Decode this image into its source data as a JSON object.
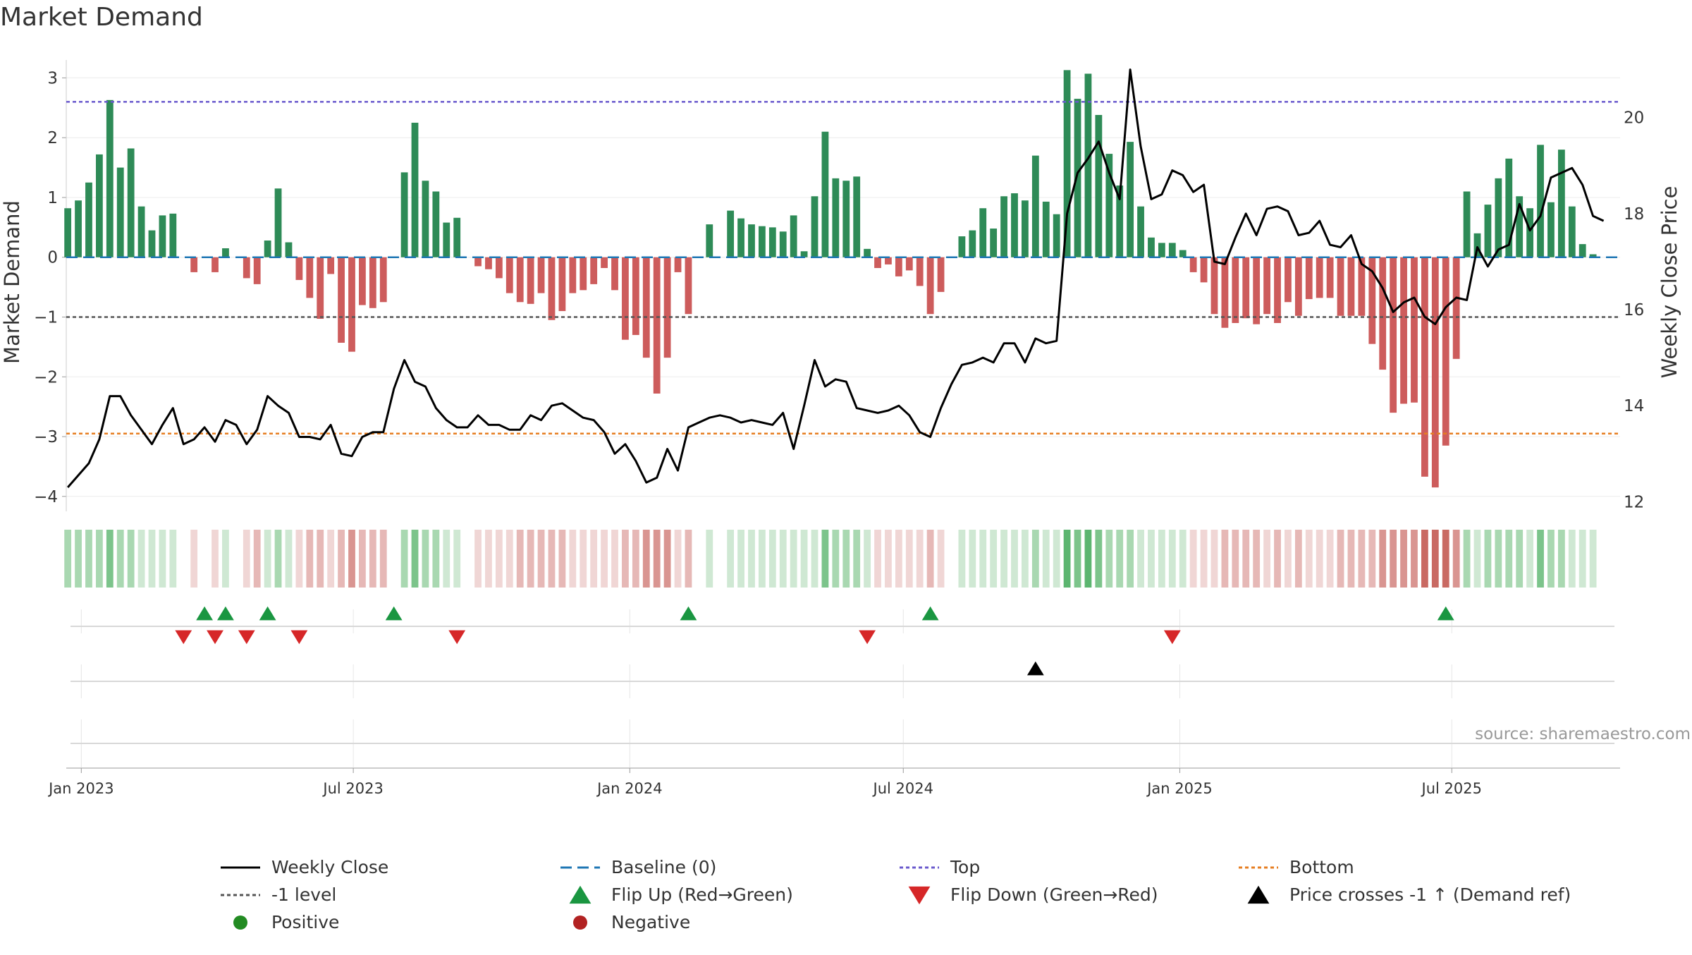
{
  "chart_data": {
    "type": "bar",
    "title": "Market Demand",
    "source": "source: sharemaestro.com",
    "ylabel": "Market Demand",
    "y2label": "Weekly Close Price",
    "ylim": [
      -4.25,
      3.3
    ],
    "y2lim": [
      11.8,
      21.2
    ],
    "yticks": [
      3,
      2,
      1,
      0,
      -1,
      -2,
      -3,
      -4
    ],
    "ytick_labels": [
      "3",
      "2",
      "1",
      "0",
      "−1",
      "−2",
      "−3",
      "−4"
    ],
    "y2ticks": [
      12,
      14,
      16,
      18,
      20
    ],
    "y2tick_labels": [
      "12",
      "14",
      "16",
      "18",
      "20"
    ],
    "x_start": "2022-12-23",
    "x_step_days": 7,
    "x_range": [
      "2022-12-22",
      "2025-10-21"
    ],
    "xticks": [
      "2023-01-01",
      "2023-07-01",
      "2024-01-01",
      "2024-07-01",
      "2025-01-01",
      "2025-07-01"
    ],
    "xtick_labels": [
      "Jan 2023",
      "Jul 2023",
      "Jan 2024",
      "Jul 2024",
      "Jan 2025",
      "Jul 2025"
    ],
    "reference_lines": {
      "top": 2.6,
      "bottom": -2.95,
      "minus_one": -1,
      "baseline": 0
    },
    "demand": [
      0.82,
      0.95,
      1.25,
      1.72,
      2.63,
      1.5,
      1.82,
      0.85,
      0.45,
      0.7,
      0.73,
      null,
      -0.25,
      null,
      -0.25,
      0.15,
      null,
      -0.35,
      -0.45,
      0.28,
      1.15,
      0.25,
      -0.38,
      -0.68,
      -1.03,
      -0.28,
      -1.43,
      -1.58,
      -0.8,
      -0.85,
      -0.75,
      null,
      1.42,
      2.25,
      1.28,
      1.1,
      0.58,
      0.66,
      null,
      -0.15,
      -0.2,
      -0.35,
      -0.6,
      -0.75,
      -0.78,
      -0.6,
      -1.05,
      -0.9,
      -0.6,
      -0.55,
      -0.45,
      -0.18,
      -0.55,
      -1.38,
      -1.3,
      -1.68,
      -2.28,
      -1.68,
      -0.25,
      -0.95,
      null,
      0.55,
      null,
      0.78,
      0.65,
      0.55,
      0.52,
      0.5,
      0.43,
      0.7,
      0.1,
      1.02,
      2.1,
      1.32,
      1.28,
      1.35,
      0.14,
      -0.18,
      -0.12,
      -0.32,
      -0.22,
      -0.48,
      -0.95,
      -0.58,
      null,
      0.35,
      0.45,
      0.82,
      0.48,
      1.02,
      1.07,
      0.95,
      1.7,
      0.93,
      0.72,
      3.13,
      2.65,
      3.07,
      2.38,
      1.73,
      1.2,
      1.93,
      0.85,
      0.33,
      0.24,
      0.24,
      0.12,
      -0.25,
      -0.42,
      -0.95,
      -1.18,
      -1.1,
      -1.02,
      -1.12,
      -0.95,
      -1.1,
      -0.75,
      -0.98,
      -0.7,
      -0.68,
      -0.68,
      -0.98,
      -0.98,
      -0.98,
      -1.45,
      -1.88,
      -2.6,
      -2.45,
      -2.43,
      -3.67,
      -3.85,
      -3.15,
      -1.7,
      1.1,
      0.4,
      0.88,
      1.32,
      1.65,
      1.02,
      0.82,
      1.88,
      0.92,
      1.8,
      0.85,
      0.22,
      0.05
    ],
    "close": [
      12.3,
      12.55,
      12.8,
      13.3,
      14.2,
      14.2,
      13.8,
      13.5,
      13.2,
      13.6,
      13.95,
      13.2,
      13.3,
      13.55,
      13.25,
      13.7,
      13.6,
      13.2,
      13.5,
      14.2,
      14.0,
      13.85,
      13.35,
      13.35,
      13.3,
      13.6,
      13.0,
      12.95,
      13.35,
      13.45,
      13.45,
      14.35,
      14.95,
      14.5,
      14.4,
      13.95,
      13.7,
      13.55,
      13.55,
      13.8,
      13.6,
      13.6,
      13.5,
      13.5,
      13.8,
      13.7,
      14.0,
      14.05,
      13.9,
      13.75,
      13.7,
      13.45,
      13.0,
      13.2,
      12.85,
      12.4,
      12.5,
      13.1,
      12.65,
      13.55,
      13.65,
      13.75,
      13.8,
      13.75,
      13.65,
      13.7,
      13.65,
      13.6,
      13.85,
      13.1,
      14.0,
      14.95,
      14.4,
      14.55,
      14.5,
      13.95,
      13.9,
      13.85,
      13.9,
      14.0,
      13.8,
      13.45,
      13.35,
      13.95,
      14.45,
      14.85,
      14.9,
      15.0,
      14.9,
      15.3,
      15.3,
      14.9,
      15.4,
      15.3,
      15.35,
      18.0,
      18.85,
      19.15,
      19.5,
      18.85,
      18.3,
      21.0,
      19.4,
      18.3,
      18.4,
      18.9,
      18.8,
      18.45,
      18.6,
      17.0,
      16.95,
      17.5,
      18.0,
      17.55,
      18.1,
      18.15,
      18.05,
      17.55,
      17.6,
      17.85,
      17.35,
      17.3,
      17.55,
      16.95,
      16.8,
      16.45,
      15.95,
      16.15,
      16.25,
      15.85,
      15.7,
      16.05,
      16.25,
      16.2,
      17.3,
      16.9,
      17.25,
      17.35,
      18.2,
      17.65,
      17.95,
      18.75,
      18.85,
      18.95,
      18.6,
      17.95,
      17.85
    ],
    "strip_states": [
      2,
      2,
      2,
      2,
      3,
      2,
      2,
      1,
      1,
      1,
      1,
      0,
      -1,
      0,
      -1,
      1,
      0,
      -1,
      -2,
      1,
      2,
      1,
      -1,
      -2,
      -2,
      -1,
      -2,
      -3,
      -2,
      -2,
      -2,
      0,
      2,
      3,
      2,
      2,
      1,
      1,
      0,
      -1,
      -1,
      -1,
      -1,
      -2,
      -2,
      -2,
      -2,
      -2,
      -1,
      -1,
      -1,
      -1,
      -1,
      -2,
      -2,
      -3,
      -3,
      -3,
      -1,
      -2,
      0,
      1,
      0,
      1,
      1,
      1,
      1,
      1,
      1,
      1,
      1,
      1,
      3,
      2,
      2,
      2,
      1,
      -1,
      -1,
      -1,
      -1,
      -1,
      -2,
      -1,
      0,
      1,
      1,
      1,
      1,
      1,
      1,
      1,
      2,
      1,
      1,
      4,
      3,
      4,
      3,
      2,
      2,
      2,
      1,
      1,
      1,
      1,
      1,
      -1,
      -1,
      -1,
      -2,
      -2,
      -2,
      -2,
      -1,
      -2,
      -1,
      -2,
      -1,
      -1,
      -1,
      -2,
      -2,
      -2,
      -2,
      -3,
      -3,
      -3,
      -3,
      -4,
      -4,
      -4,
      -3,
      2,
      1,
      2,
      2,
      2,
      2,
      1,
      3,
      2,
      2,
      1,
      1,
      1
    ],
    "flip_up_weeks": [
      13,
      15,
      19,
      31,
      59,
      82,
      131
    ],
    "flip_down_weeks": [
      11,
      14,
      17,
      22,
      37,
      76,
      105
    ],
    "price_cross_weeks": [
      92
    ],
    "colors": {
      "positive_bar": "#2e8b57",
      "negative_bar": "#cd5c5c",
      "close_line": "#000000",
      "baseline": "#1f77b4",
      "top_line": "#6a5acd",
      "bottom_line": "#e67e22",
      "minus_one_line": "#555555",
      "flip_up": "#1a9641",
      "flip_down": "#d62728",
      "price_cross": "#000000",
      "positive_dot": "#228b22",
      "negative_dot": "#b22222"
    },
    "legend": {
      "placement": "bottom",
      "entries": [
        {
          "label": "Weekly Close",
          "symbol": "line-solid",
          "color": "#000000"
        },
        {
          "label": "Baseline (0)",
          "symbol": "line-dashed",
          "color": "#1f77b4"
        },
        {
          "label": "Top",
          "symbol": "line-dotted",
          "color": "#6a5acd"
        },
        {
          "label": "Bottom",
          "symbol": "line-dotted",
          "color": "#e67e22"
        },
        {
          "label": "-1 level",
          "symbol": "line-dotted",
          "color": "#555555"
        },
        {
          "label": "Flip Up (Red→Green)",
          "symbol": "triangle-up",
          "color": "#1a9641"
        },
        {
          "label": "Flip Down (Green→Red)",
          "symbol": "triangle-down",
          "color": "#d62728"
        },
        {
          "label": "Price crosses -1 ↑ (Demand ref)",
          "symbol": "triangle-up",
          "color": "#000000"
        },
        {
          "label": "Positive",
          "symbol": "circle",
          "color": "#228b22"
        },
        {
          "label": "Negative",
          "symbol": "circle",
          "color": "#b22222"
        }
      ]
    }
  }
}
